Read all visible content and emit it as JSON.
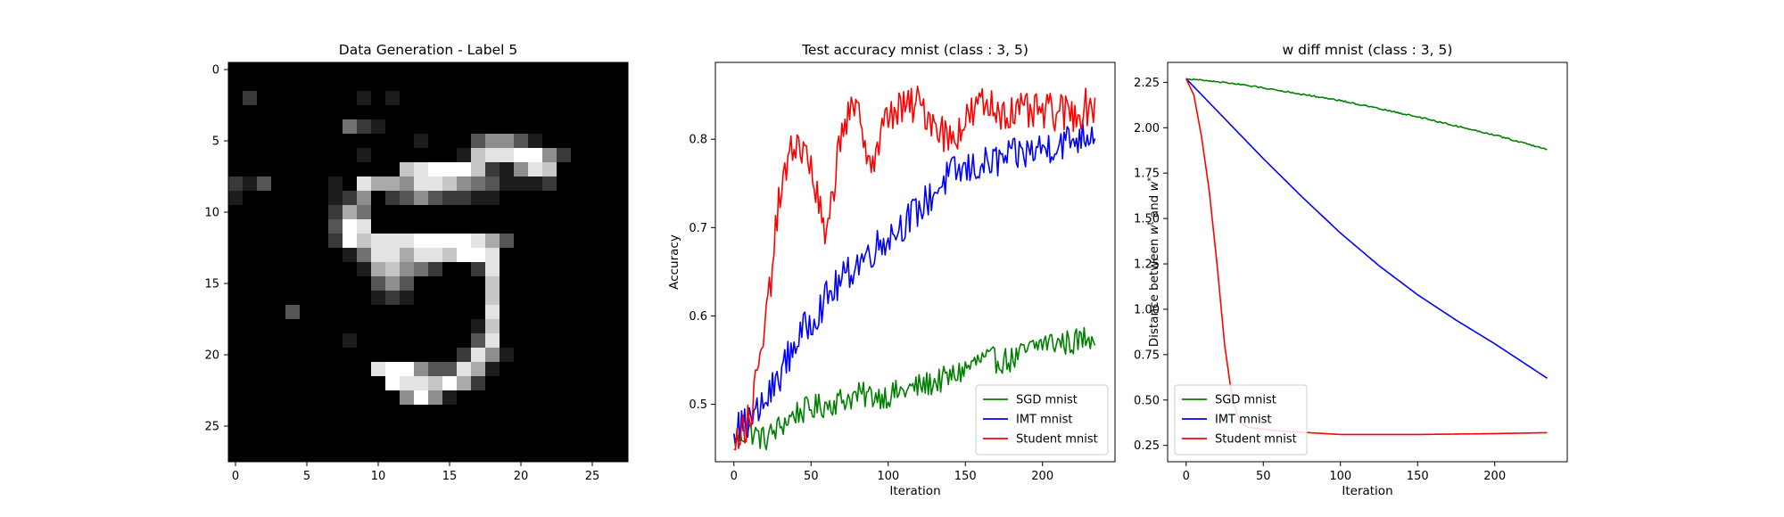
{
  "image_panel": {
    "title": "Data Generation - Label 5",
    "xticks": [
      "0",
      "5",
      "10",
      "15",
      "20",
      "25"
    ],
    "yticks": [
      "0",
      "5",
      "10",
      "15",
      "20",
      "25"
    ],
    "pixels": [
      "0000000000000000000000000000",
      "0000000000000000000000000000",
      "0200000001010000000000000000",
      "0000000000000000000000000000",
      "0000000042100000000000000000",
      "0000000000000100035531000000",
      "0000000001000000178899520000",
      "0000000000007899972158700000",
      "2130000108665887543111200000",
      "1000000125023532211000000000",
      "0000000264000000000000000000",
      "0000000398000000000000000000",
      "0000000297888999986300000000",
      "0000000014886887998000000000",
      "0000000001675420028000000000",
      "0000000000353000007000000000",
      "0000000000121000007000000000",
      "0000300000000000008000000000",
      "0000000000000000017000000000",
      "0000000010000000038000000000",
      "0000000000000000285100000000",
      "0000000000899533861000000000",
      "0000000000098879620000000000",
      "0000000000005951000000000000",
      "0000000000000000000000000000",
      "0000000000000000000000000000",
      "0000000000000000000000000000",
      "0000000000000000000000000000"
    ]
  },
  "chart_data": [
    {
      "type": "line",
      "title": "Test accuracy mnist (class : 3, 5)",
      "xlabel": "Iteration",
      "ylabel": "Accuracy",
      "xlim": [
        -12,
        247
      ],
      "ylim": [
        0.435,
        0.887
      ],
      "xticks": [
        0,
        50,
        100,
        150,
        200
      ],
      "yticks": [
        0.5,
        0.6,
        0.7,
        0.8
      ],
      "ytick_labels": [
        "0.5",
        "0.6",
        "0.7",
        "0.8"
      ],
      "legend": "lower-right",
      "series": [
        {
          "name": "SGD mnist",
          "color": "#008000",
          "points": [
            [
              0,
              0.46
            ],
            [
              10,
              0.47
            ],
            [
              20,
              0.46
            ],
            [
              40,
              0.49
            ],
            [
              60,
              0.5
            ],
            [
              80,
              0.51
            ],
            [
              100,
              0.51
            ],
            [
              120,
              0.52
            ],
            [
              140,
              0.53
            ],
            [
              160,
              0.55
            ],
            [
              180,
              0.55
            ],
            [
              200,
              0.57
            ],
            [
              220,
              0.57
            ],
            [
              234,
              0.58
            ]
          ]
        },
        {
          "name": "IMT mnist",
          "color": "#0000ff",
          "points": [
            [
              0,
              0.47
            ],
            [
              10,
              0.48
            ],
            [
              20,
              0.5
            ],
            [
              40,
              0.57
            ],
            [
              60,
              0.62
            ],
            [
              80,
              0.66
            ],
            [
              100,
              0.69
            ],
            [
              120,
              0.72
            ],
            [
              140,
              0.76
            ],
            [
              160,
              0.77
            ],
            [
              180,
              0.78
            ],
            [
              200,
              0.79
            ],
            [
              220,
              0.8
            ],
            [
              234,
              0.81
            ]
          ]
        },
        {
          "name": "Student mnist",
          "color": "#ff0000",
          "points": [
            [
              0,
              0.46
            ],
            [
              10,
              0.48
            ],
            [
              20,
              0.58
            ],
            [
              30,
              0.74
            ],
            [
              40,
              0.8
            ],
            [
              50,
              0.77
            ],
            [
              60,
              0.68
            ],
            [
              70,
              0.82
            ],
            [
              80,
              0.83
            ],
            [
              90,
              0.77
            ],
            [
              100,
              0.83
            ],
            [
              120,
              0.84
            ],
            [
              140,
              0.8
            ],
            [
              160,
              0.84
            ],
            [
              180,
              0.83
            ],
            [
              200,
              0.83
            ],
            [
              220,
              0.83
            ],
            [
              234,
              0.84
            ]
          ]
        }
      ]
    },
    {
      "type": "line",
      "title": "w diff mnist (class : 3, 5)",
      "xlabel": "Iteration",
      "ylabel": "Distance between w^t and w^*",
      "xlim": [
        -12,
        247
      ],
      "ylim": [
        0.16,
        2.36
      ],
      "xticks": [
        0,
        50,
        100,
        150,
        200
      ],
      "yticks": [
        0.25,
        0.5,
        0.75,
        1.0,
        1.25,
        1.5,
        1.75,
        2.0,
        2.25
      ],
      "ytick_labels": [
        "0.25",
        "0.50",
        "0.75",
        "1.00",
        "1.25",
        "1.50",
        "1.75",
        "2.00",
        "2.25"
      ],
      "legend": "lower-left",
      "series": [
        {
          "name": "SGD mnist",
          "color": "#008000",
          "points": [
            [
              0,
              2.27
            ],
            [
              25,
              2.25
            ],
            [
              50,
              2.22
            ],
            [
              100,
              2.15
            ],
            [
              150,
              2.06
            ],
            [
              200,
              1.96
            ],
            [
              234,
              1.88
            ]
          ]
        },
        {
          "name": "IMT mnist",
          "color": "#0000ff",
          "points": [
            [
              0,
              2.27
            ],
            [
              25,
              2.05
            ],
            [
              50,
              1.83
            ],
            [
              75,
              1.62
            ],
            [
              100,
              1.42
            ],
            [
              125,
              1.24
            ],
            [
              150,
              1.08
            ],
            [
              175,
              0.94
            ],
            [
              200,
              0.81
            ],
            [
              234,
              0.62
            ]
          ]
        },
        {
          "name": "Student mnist",
          "color": "#ff0000",
          "points": [
            [
              0,
              2.27
            ],
            [
              5,
              2.18
            ],
            [
              10,
              1.95
            ],
            [
              15,
              1.65
            ],
            [
              20,
              1.25
            ],
            [
              25,
              0.8
            ],
            [
              30,
              0.5
            ],
            [
              35,
              0.38
            ],
            [
              40,
              0.35
            ],
            [
              60,
              0.33
            ],
            [
              80,
              0.32
            ],
            [
              100,
              0.31
            ],
            [
              150,
              0.31
            ],
            [
              200,
              0.315
            ],
            [
              234,
              0.32
            ]
          ]
        }
      ]
    }
  ]
}
